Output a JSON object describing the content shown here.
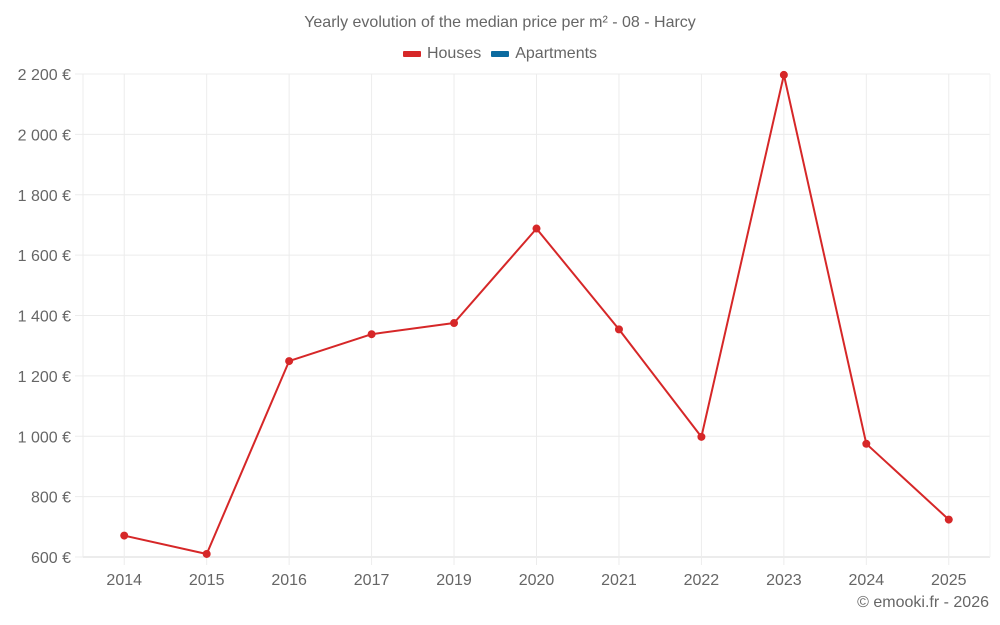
{
  "header": {
    "title": "Yearly evolution of the median price per m² - 08 - Harcy"
  },
  "legend": {
    "items": [
      {
        "label": "Houses",
        "color": "#d62728"
      },
      {
        "label": "Apartments",
        "color": "#0b6a9f"
      }
    ]
  },
  "footer": {
    "credit": "© emooki.fr - 2026"
  },
  "chart_data": {
    "type": "line",
    "title": "Yearly evolution of the median price per m² - 08 - Harcy",
    "xlabel": "",
    "ylabel": "",
    "categories": [
      "2014",
      "2015",
      "2016",
      "2017",
      "2019",
      "2020",
      "2021",
      "2022",
      "2023",
      "2024",
      "2025"
    ],
    "series": [
      {
        "name": "Houses",
        "color": "#d62728",
        "values": [
          671,
          610,
          1249,
          1338,
          1375,
          1688,
          1354,
          998,
          2197,
          975,
          724
        ]
      },
      {
        "name": "Apartments",
        "color": "#0b6a9f",
        "values": []
      }
    ],
    "ylim": [
      600,
      2200
    ],
    "yticks": [
      600,
      800,
      1000,
      1200,
      1400,
      1600,
      1800,
      2000,
      2200
    ],
    "ytick_labels": [
      "600 €",
      "800 €",
      "1 000 €",
      "1 200 €",
      "1 400 €",
      "1 600 €",
      "1 800 €",
      "2 000 €",
      "2 200 €"
    ],
    "grid": true,
    "legend_position": "top"
  }
}
